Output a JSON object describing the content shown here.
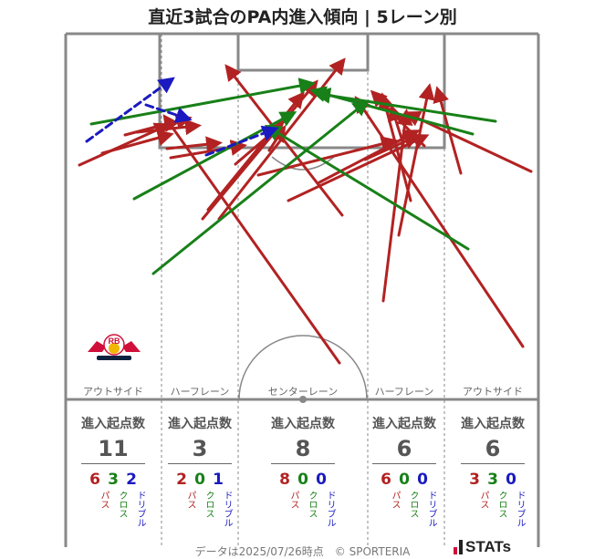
{
  "title": "直近3試合のPA内進入傾向 | 5レーン別",
  "footer": "データは2025/07/26時点　© SPORTERIA",
  "brand": "STATs",
  "logo_text": "RB",
  "colors": {
    "pass": "#b22222",
    "cross": "#188018",
    "dribble": "#1a1ac0",
    "pitch_line": "#888888"
  },
  "lanes": [
    {
      "label": "アウトサイド",
      "stat_head": "進入起点数",
      "total": "11",
      "pass": "6",
      "cross": "3",
      "dribble": "2"
    },
    {
      "label": "ハーフレーン",
      "stat_head": "進入起点数",
      "total": "3",
      "pass": "2",
      "cross": "0",
      "dribble": "1"
    },
    {
      "label": "センターレーン",
      "stat_head": "進入起点数",
      "total": "8",
      "pass": "8",
      "cross": "0",
      "dribble": "0"
    },
    {
      "label": "ハーフレーン",
      "stat_head": "進入起点数",
      "total": "6",
      "pass": "6",
      "cross": "0",
      "dribble": "0"
    },
    {
      "label": "アウトサイド",
      "stat_head": "進入起点数",
      "total": "6",
      "pass": "3",
      "cross": "3",
      "dribble": "0"
    }
  ],
  "type_labels": {
    "pass": "パス",
    "cross": "クロス",
    "dribble": "ドリブル"
  },
  "chart_data": {
    "type": "scatter",
    "arrows": [
      {
        "kind": "pass",
        "from": [
          87,
          181
        ],
        "to": [
          182,
          138
        ]
      },
      {
        "kind": "pass",
        "from": [
          112,
          168
        ],
        "to": [
          185,
          148
        ]
      },
      {
        "kind": "pass",
        "from": [
          137,
          148
        ],
        "to": [
          205,
          130
        ]
      },
      {
        "kind": "pass",
        "from": [
          150,
          145
        ],
        "to": [
          215,
          138
        ]
      },
      {
        "kind": "pass",
        "from": [
          183,
          163
        ],
        "to": [
          238,
          157
        ]
      },
      {
        "kind": "pass",
        "from": [
          187,
          173
        ],
        "to": [
          265,
          160
        ]
      },
      {
        "kind": "pass",
        "from": [
          372,
          398
        ],
        "to": [
          182,
          130
        ]
      },
      {
        "kind": "pass",
        "from": [
          375,
          236
        ],
        "to": [
          250,
          75
        ]
      },
      {
        "kind": "pass",
        "from": [
          240,
          240
        ],
        "to": [
          375,
          68
        ]
      },
      {
        "kind": "pass",
        "from": [
          222,
          240
        ],
        "to": [
          345,
          92
        ]
      },
      {
        "kind": "pass",
        "from": [
          228,
          230
        ],
        "to": [
          330,
          105
        ]
      },
      {
        "kind": "pass",
        "from": [
          258,
          180
        ],
        "to": [
          307,
          138
        ]
      },
      {
        "kind": "pass",
        "from": [
          295,
          165
        ],
        "to": [
          310,
          142
        ]
      },
      {
        "kind": "pass",
        "from": [
          283,
          192
        ],
        "to": [
          430,
          155
        ]
      },
      {
        "kind": "pass",
        "from": [
          316,
          220
        ],
        "to": [
          465,
          150
        ]
      },
      {
        "kind": "pass",
        "from": [
          350,
          200
        ],
        "to": [
          455,
          145
        ]
      },
      {
        "kind": "pass",
        "from": [
          420,
          330
        ],
        "to": [
          445,
          125
        ]
      },
      {
        "kind": "pass",
        "from": [
          437,
          258
        ],
        "to": [
          470,
          97
        ]
      },
      {
        "kind": "pass",
        "from": [
          450,
          220
        ],
        "to": [
          420,
          107
        ]
      },
      {
        "kind": "pass",
        "from": [
          573,
          380
        ],
        "to": [
          392,
          110
        ]
      },
      {
        "kind": "pass",
        "from": [
          582,
          188
        ],
        "to": [
          448,
          125
        ]
      },
      {
        "kind": "pass",
        "from": [
          505,
          190
        ],
        "to": [
          480,
          100
        ]
      },
      {
        "kind": "pass",
        "from": [
          465,
          160
        ],
        "to": [
          410,
          103
        ]
      },
      {
        "kind": "pass",
        "from": [
          442,
          158
        ],
        "to": [
          430,
          120
        ]
      },
      {
        "kind": "pass",
        "from": [
          400,
          175
        ],
        "to": [
          455,
          150
        ]
      },
      {
        "kind": "cross",
        "from": [
          100,
          136
        ],
        "to": [
          340,
          92
        ]
      },
      {
        "kind": "cross",
        "from": [
          147,
          218
        ],
        "to": [
          320,
          125
        ]
      },
      {
        "kind": "cross",
        "from": [
          168,
          300
        ],
        "to": [
          400,
          113
        ]
      },
      {
        "kind": "cross",
        "from": [
          513,
          273
        ],
        "to": [
          295,
          140
        ]
      },
      {
        "kind": "cross",
        "from": [
          543,
          133
        ],
        "to": [
          350,
          103
        ]
      },
      {
        "kind": "cross",
        "from": [
          518,
          147
        ],
        "to": [
          345,
          100
        ]
      },
      {
        "kind": "dribble",
        "from": [
          95,
          155
        ],
        "to": [
          187,
          88
        ]
      },
      {
        "kind": "dribble",
        "from": [
          160,
          115
        ],
        "to": [
          205,
          130
        ]
      },
      {
        "kind": "dribble",
        "from": [
          226,
          170
        ],
        "to": [
          300,
          142
        ]
      }
    ]
  }
}
